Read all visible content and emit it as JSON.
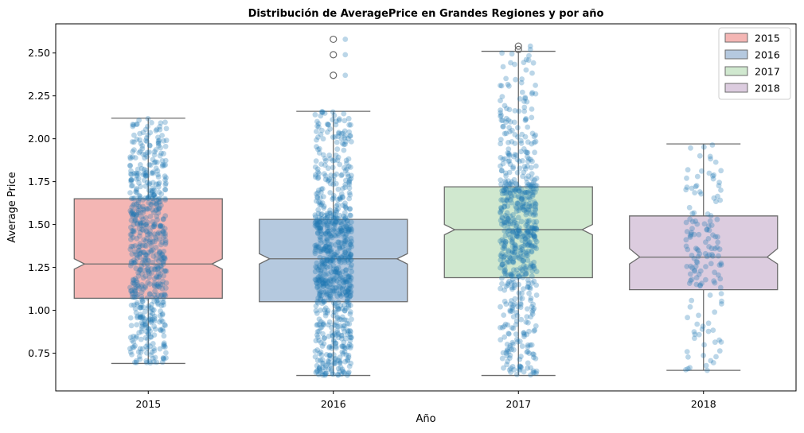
{
  "chart_data": {
    "type": "box",
    "title": "Distribución de AveragePrice en Grandes Regiones y por año",
    "xlabel": "Año",
    "ylabel": "Average Price",
    "categories": [
      "2015",
      "2016",
      "2017",
      "2018"
    ],
    "ylim": [
      0.53,
      2.67
    ],
    "yticks": [
      "0.75",
      "1.00",
      "1.25",
      "1.50",
      "1.75",
      "2.00",
      "2.25",
      "2.50"
    ],
    "legend": {
      "placement": "top-right",
      "entries": [
        {
          "label": "2015",
          "color": "#f4b6b4"
        },
        {
          "label": "2016",
          "color": "#b5c9df"
        },
        {
          "label": "2017",
          "color": "#d0e8cf"
        },
        {
          "label": "2018",
          "color": "#dcccdf"
        }
      ]
    },
    "boxes": [
      {
        "category": "2015",
        "whisker_low": 0.69,
        "q1": 1.07,
        "median": 1.27,
        "notch_low": 1.24,
        "notch_high": 1.3,
        "q3": 1.65,
        "whisker_high": 2.12,
        "outliers": []
      },
      {
        "category": "2016",
        "whisker_low": 0.62,
        "q1": 1.05,
        "median": 1.3,
        "notch_low": 1.27,
        "notch_high": 1.33,
        "q3": 1.53,
        "whisker_high": 2.16,
        "outliers": [
          2.58,
          2.49,
          2.37
        ]
      },
      {
        "category": "2017",
        "whisker_low": 0.62,
        "q1": 1.19,
        "median": 1.47,
        "notch_low": 1.44,
        "notch_high": 1.5,
        "q3": 1.72,
        "whisker_high": 2.51,
        "outliers": [
          2.54,
          2.52
        ]
      },
      {
        "category": "2018",
        "whisker_low": 0.65,
        "q1": 1.12,
        "median": 1.31,
        "notch_low": 1.27,
        "notch_high": 1.36,
        "q3": 1.55,
        "whisker_high": 1.97,
        "outliers": []
      }
    ],
    "strip_points": {
      "color": "#1f77b4",
      "opacity": 0.3,
      "counts": [
        620,
        780,
        640,
        150
      ]
    },
    "colors": {
      "box_edge": "#6b6b6b",
      "points": "#1f77b4"
    }
  }
}
